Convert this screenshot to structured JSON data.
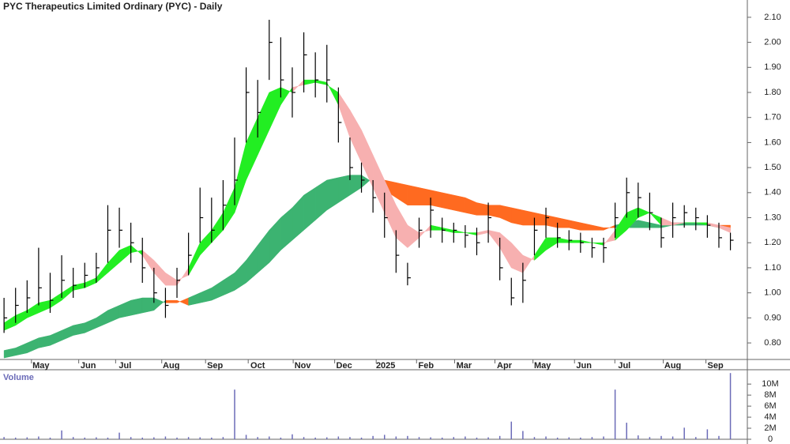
{
  "chart_data": [
    {
      "type": "ohlc",
      "title": "PYC Therapeutics Limited Ordinary (PYC) - Daily",
      "color": "#000000",
      "xlim": [
        -0.35,
        64.4
      ],
      "xticks": [
        {
          "value": 3.2,
          "label": "May"
        },
        {
          "value": 7.3,
          "label": "Jun"
        },
        {
          "value": 10.5,
          "label": "Jul"
        },
        {
          "value": 14.5,
          "label": "Aug"
        },
        {
          "value": 18.3,
          "label": "Sep"
        },
        {
          "value": 22,
          "label": "Oct"
        },
        {
          "value": 25.9,
          "label": "Nov"
        },
        {
          "value": 29.5,
          "label": "Dec"
        },
        {
          "value": 33.1,
          "label": "2025"
        },
        {
          "value": 36.6,
          "label": "Feb"
        },
        {
          "value": 39.9,
          "label": "Mar"
        },
        {
          "value": 43.4,
          "label": "Apr"
        },
        {
          "value": 46.7,
          "label": "May"
        },
        {
          "value": 50.3,
          "label": "Jun"
        },
        {
          "value": 53.8,
          "label": "Jul"
        },
        {
          "value": 58,
          "label": "Aug"
        },
        {
          "value": 61.7,
          "label": "Sep"
        }
      ],
      "ylim": [
        0.734,
        2.169
      ],
      "yticks": [
        {
          "value": 0.8,
          "label": "0.80"
        },
        {
          "value": 0.9,
          "label": "0.90"
        },
        {
          "value": 1.0,
          "label": "1.00"
        },
        {
          "value": 1.1,
          "label": "1.10"
        },
        {
          "value": 1.2,
          "label": "1.20"
        },
        {
          "value": 1.3,
          "label": "1.30"
        },
        {
          "value": 1.4,
          "label": "1.40"
        },
        {
          "value": 1.5,
          "label": "1.50"
        },
        {
          "value": 1.6,
          "label": "1.60"
        },
        {
          "value": 1.7,
          "label": "1.70"
        },
        {
          "value": 1.8,
          "label": "1.80"
        },
        {
          "value": 1.9,
          "label": "1.90"
        },
        {
          "value": 2.0,
          "label": "2.00"
        },
        {
          "value": 2.1,
          "label": "2.10"
        }
      ],
      "high": [
        0.98,
        1.02,
        1.05,
        1.18,
        1.08,
        1.15,
        1.1,
        1.12,
        1.16,
        1.35,
        1.34,
        1.28,
        1.22,
        1.1,
        1.02,
        1.1,
        1.24,
        1.42,
        1.38,
        1.45,
        1.62,
        1.9,
        1.85,
        2.09,
        2.02,
        1.9,
        2.04,
        1.96,
        1.99,
        1.82,
        1.62,
        1.52,
        1.45,
        1.4,
        1.25,
        1.12,
        1.3,
        1.38,
        1.3,
        1.28,
        1.27,
        1.26,
        1.36,
        1.22,
        1.06,
        1.12,
        1.3,
        1.34,
        1.28,
        1.25,
        1.24,
        1.22,
        1.22,
        1.36,
        1.46,
        1.44,
        1.4,
        1.3,
        1.36,
        1.35,
        1.34,
        1.31,
        1.28,
        1.24
      ],
      "low": [
        0.84,
        0.88,
        0.92,
        0.95,
        0.92,
        0.98,
        0.98,
        1.02,
        1.04,
        1.12,
        1.18,
        1.12,
        1.04,
        0.96,
        0.9,
        0.98,
        1.07,
        1.2,
        1.2,
        1.25,
        1.35,
        1.6,
        1.62,
        1.85,
        1.78,
        1.7,
        1.8,
        1.78,
        1.76,
        1.6,
        1.45,
        1.4,
        1.32,
        1.22,
        1.08,
        1.03,
        1.18,
        1.22,
        1.2,
        1.2,
        1.18,
        1.15,
        1.2,
        1.05,
        0.95,
        0.96,
        1.15,
        1.22,
        1.18,
        1.17,
        1.16,
        1.14,
        1.12,
        1.22,
        1.3,
        1.3,
        1.25,
        1.18,
        1.22,
        1.26,
        1.25,
        1.22,
        1.18,
        1.17
      ],
      "close": [
        0.9,
        0.95,
        0.98,
        1.02,
        0.97,
        1.05,
        1.03,
        1.07,
        1.1,
        1.25,
        1.25,
        1.2,
        1.1,
        1.0,
        0.95,
        1.05,
        1.15,
        1.3,
        1.25,
        1.35,
        1.45,
        1.8,
        1.72,
        2.0,
        1.85,
        1.8,
        1.95,
        1.85,
        1.85,
        1.68,
        1.5,
        1.45,
        1.38,
        1.3,
        1.15,
        1.06,
        1.25,
        1.33,
        1.25,
        1.25,
        1.23,
        1.2,
        1.3,
        1.1,
        0.98,
        1.05,
        1.25,
        1.3,
        1.22,
        1.21,
        1.2,
        1.18,
        1.18,
        1.3,
        1.4,
        1.38,
        1.32,
        1.22,
        1.3,
        1.32,
        1.3,
        1.27,
        1.22,
        1.21
      ],
      "bands": [
        {
          "up_color": "#22ee22",
          "down_color": "#f7b0b0",
          "fast": [
            0.88,
            0.91,
            0.93,
            0.96,
            0.97,
            1.0,
            1.03,
            1.04,
            1.06,
            1.12,
            1.17,
            1.19,
            1.15,
            1.08,
            1.03,
            1.03,
            1.1,
            1.2,
            1.25,
            1.32,
            1.42,
            1.6,
            1.7,
            1.8,
            1.82,
            1.8,
            1.85,
            1.85,
            1.84,
            1.75,
            1.62,
            1.52,
            1.42,
            1.32,
            1.22,
            1.18,
            1.22,
            1.27,
            1.26,
            1.25,
            1.24,
            1.23,
            1.24,
            1.18,
            1.1,
            1.08,
            1.15,
            1.22,
            1.22,
            1.21,
            1.21,
            1.2,
            1.19,
            1.25,
            1.32,
            1.34,
            1.32,
            1.27,
            1.27,
            1.28,
            1.28,
            1.27,
            1.26,
            1.24
          ],
          "slow": [
            0.85,
            0.87,
            0.9,
            0.92,
            0.94,
            0.97,
            1.01,
            1.02,
            1.04,
            1.08,
            1.12,
            1.16,
            1.17,
            1.13,
            1.08,
            1.05,
            1.07,
            1.15,
            1.2,
            1.25,
            1.32,
            1.45,
            1.55,
            1.65,
            1.75,
            1.82,
            1.83,
            1.84,
            1.83,
            1.8,
            1.73,
            1.65,
            1.55,
            1.45,
            1.35,
            1.27,
            1.24,
            1.25,
            1.25,
            1.24,
            1.24,
            1.24,
            1.25,
            1.24,
            1.2,
            1.15,
            1.13,
            1.17,
            1.2,
            1.2,
            1.2,
            1.2,
            1.2,
            1.21,
            1.25,
            1.3,
            1.32,
            1.3,
            1.28,
            1.28,
            1.28,
            1.28,
            1.27,
            1.26
          ]
        },
        {
          "up_color": "#3cb371",
          "down_color": "#ff6a20",
          "fast": [
            0.77,
            0.78,
            0.8,
            0.82,
            0.83,
            0.85,
            0.87,
            0.88,
            0.9,
            0.93,
            0.95,
            0.97,
            0.98,
            0.98,
            0.96,
            0.96,
            0.98,
            1.0,
            1.02,
            1.05,
            1.08,
            1.13,
            1.19,
            1.25,
            1.3,
            1.34,
            1.39,
            1.42,
            1.45,
            1.46,
            1.47,
            1.47,
            1.44,
            1.41,
            1.38,
            1.35,
            1.35,
            1.35,
            1.34,
            1.33,
            1.32,
            1.31,
            1.31,
            1.3,
            1.28,
            1.27,
            1.27,
            1.27,
            1.26,
            1.26,
            1.25,
            1.25,
            1.25,
            1.27,
            1.28,
            1.29,
            1.28,
            1.27,
            1.28,
            1.28,
            1.28,
            1.27,
            1.26,
            1.25
          ],
          "slow": [
            0.74,
            0.75,
            0.76,
            0.78,
            0.79,
            0.81,
            0.83,
            0.84,
            0.86,
            0.88,
            0.9,
            0.91,
            0.92,
            0.93,
            0.97,
            0.97,
            0.95,
            0.96,
            0.97,
            0.99,
            1.01,
            1.04,
            1.08,
            1.12,
            1.17,
            1.21,
            1.25,
            1.29,
            1.33,
            1.36,
            1.39,
            1.42,
            1.46,
            1.45,
            1.44,
            1.43,
            1.42,
            1.41,
            1.4,
            1.39,
            1.38,
            1.36,
            1.35,
            1.35,
            1.34,
            1.33,
            1.32,
            1.31,
            1.3,
            1.29,
            1.28,
            1.27,
            1.26,
            1.26,
            1.26,
            1.26,
            1.26,
            1.26,
            1.27,
            1.27,
            1.27,
            1.27,
            1.27,
            1.27
          ]
        }
      ]
    },
    {
      "type": "bar",
      "title": "Volume",
      "color": "#6b6bb8",
      "ylim": [
        0,
        12600000
      ],
      "yticks": [
        0,
        {
          "value": 2000000,
          "label": "2M"
        },
        {
          "value": 4000000,
          "label": "4M"
        },
        {
          "value": 6000000,
          "label": "6M"
        },
        {
          "value": 8000000,
          "label": "8M"
        },
        {
          "value": 10000000,
          "label": "10M"
        }
      ],
      "values": [
        400000,
        300000,
        350000,
        500000,
        300000,
        1600000,
        400000,
        300000,
        350000,
        300000,
        1200000,
        400000,
        300000,
        350000,
        500000,
        300000,
        400000,
        350000,
        300000,
        400000,
        9000000,
        800000,
        400000,
        500000,
        300000,
        900000,
        400000,
        300000,
        350000,
        500000,
        400000,
        300000,
        600000,
        800000,
        500000,
        600000,
        400000,
        350000,
        300000,
        400000,
        500000,
        300000,
        350000,
        600000,
        3200000,
        1500000,
        400000,
        500000,
        300000,
        350000,
        300000,
        400000,
        500000,
        9000000,
        3000000,
        700000,
        400000,
        600000,
        500000,
        2100000,
        400000,
        1800000,
        600000,
        12000000
      ]
    }
  ]
}
